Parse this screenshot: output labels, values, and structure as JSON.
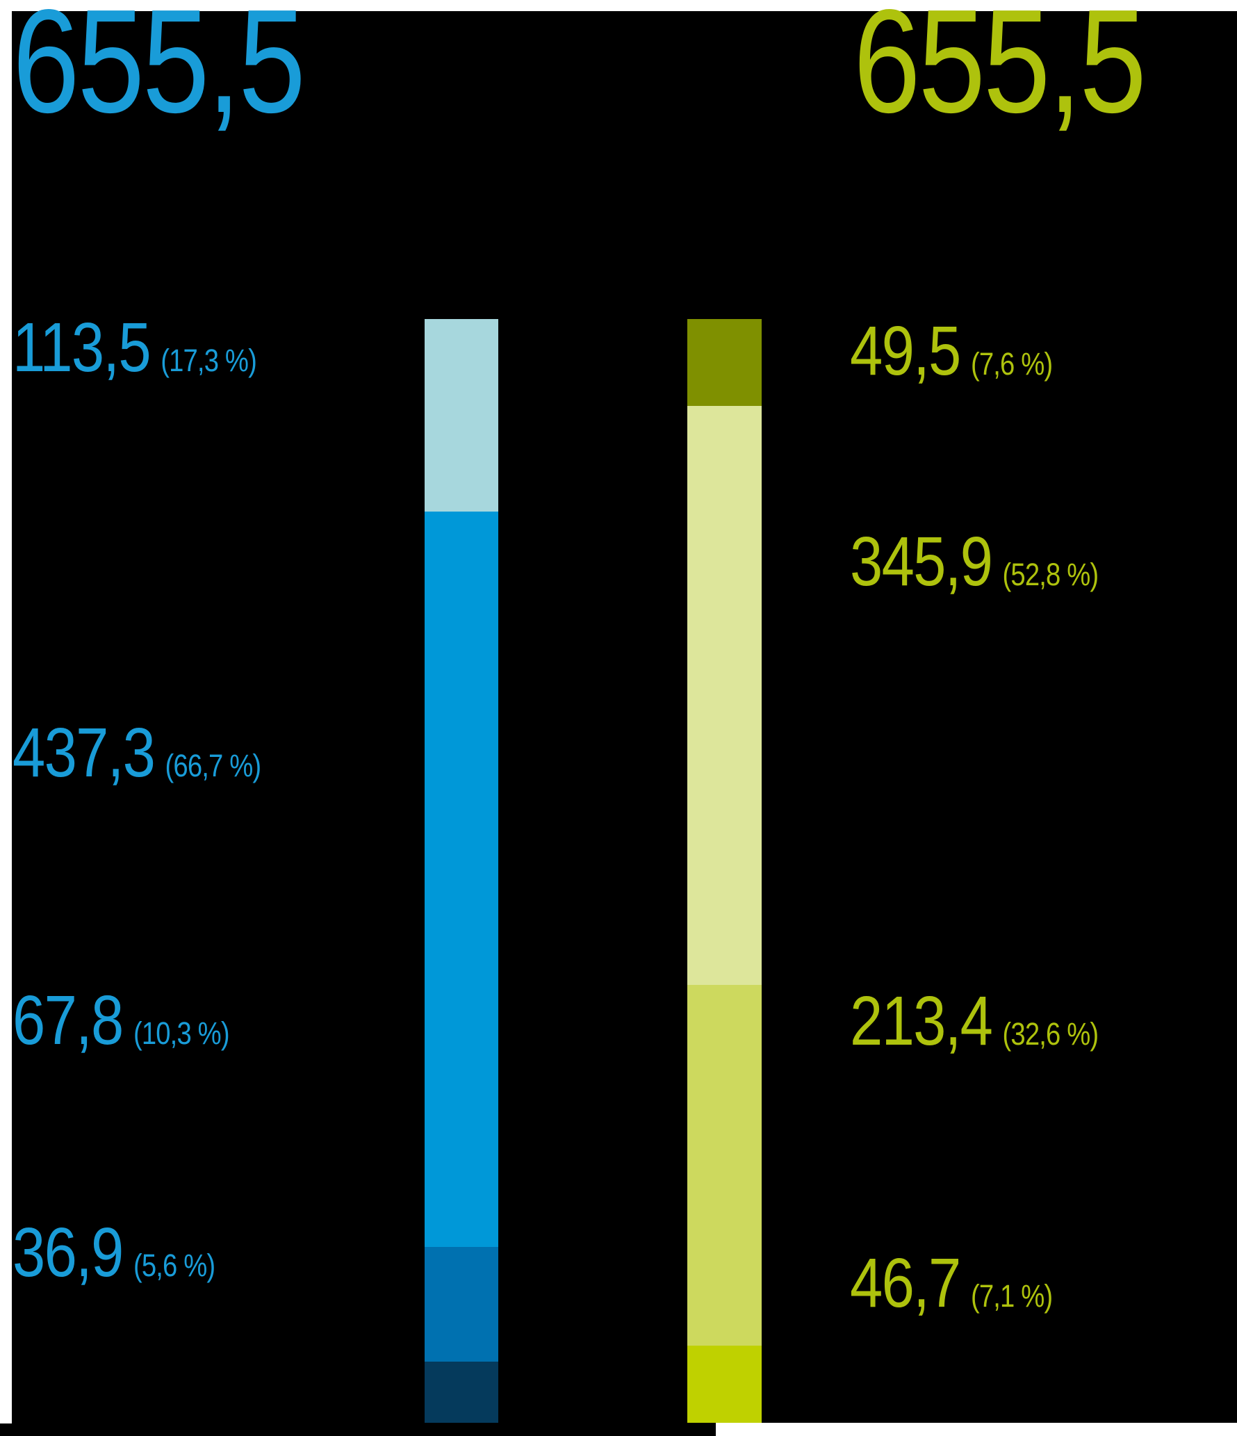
{
  "chart_data": {
    "type": "bar",
    "subtype": "stacked_vertical_columns",
    "title": "",
    "legend": "none",
    "axes": "none (free-floating labeled stacked bars on black background)",
    "columns": [
      {
        "name": "left-column",
        "accent_color": "#199cd8",
        "total": "655,5",
        "segments": [
          {
            "value": "113,5",
            "percent": "(17,3 %)",
            "color": "#a7d7dd"
          },
          {
            "value": "437,3",
            "percent": "(66,7 %)",
            "color": "#0098d8"
          },
          {
            "value": "67,8",
            "percent": "(10,3 %)",
            "color": "#0071b0"
          },
          {
            "value": "36,9",
            "percent": "(5,6 %)",
            "color": "#053a5c"
          }
        ]
      },
      {
        "name": "right-column",
        "accent_color": "#aec20d",
        "total": "655,5",
        "segments": [
          {
            "value": "49,5",
            "percent": "(7,6 %)",
            "color": "#7f9000"
          },
          {
            "value": "345,9",
            "percent": "(52,8 %)",
            "color": "#dde69b"
          },
          {
            "value": "213,4",
            "percent": "(32,6 %)",
            "color": "#cdd95e"
          },
          {
            "value": "46,7",
            "percent": "(7,1 %)",
            "color": "#bfd100"
          }
        ]
      }
    ],
    "numeric": {
      "total": 655.5,
      "left_values": [
        113.5,
        437.3,
        67.8,
        36.9
      ],
      "left_percents": [
        17.3,
        66.7,
        10.3,
        5.6
      ],
      "right_values": [
        49.5,
        345.9,
        213.4,
        46.7
      ],
      "right_percents": [
        7.6,
        52.8,
        32.6,
        7.1
      ]
    }
  }
}
